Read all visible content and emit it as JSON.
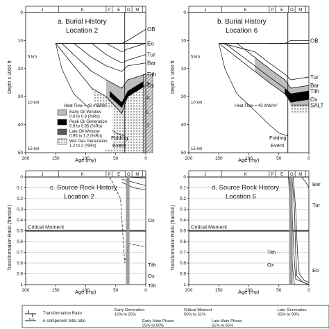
{
  "figure": {
    "colors": {
      "ink": "#111111",
      "grid": "#9a9a9a",
      "fold_band": "#8f8f8f",
      "early_oil": "#bdbdbd",
      "peak_oil": "#000000",
      "late_oil": "#5a5a5a",
      "wet_gas": "#e6e6e6"
    }
  },
  "chart_data": [
    {
      "id": "a",
      "type": "line",
      "title": "a. Burial History",
      "subtitle": "Location 2",
      "period_bar": [
        "J",
        "K",
        "P",
        "E",
        "O",
        "M"
      ],
      "x": {
        "label": "Age (my)",
        "ticks": [
          200,
          150,
          100,
          50,
          0
        ],
        "lim": [
          200,
          0
        ]
      },
      "y": {
        "label": "Depth x 1000 ft",
        "ticks": [
          0,
          10,
          20,
          30,
          40,
          50
        ],
        "lim": [
          0,
          50
        ]
      },
      "km_labels": [
        "5 km",
        "10 km",
        "15 km"
      ],
      "heat_flow": "Heat Flow = 43 mW/m²",
      "folding_label": [
        "Folding",
        "Event"
      ],
      "folding_age": 35,
      "horizons": [
        {
          "name": "OB",
          "points": [
            [
              66,
              11
            ],
            [
              40,
              11
            ],
            [
              30,
              10
            ],
            [
              0,
              6
            ]
          ]
        },
        {
          "name": "Eo",
          "points": [
            [
              66,
              11
            ],
            [
              40,
              14
            ],
            [
              30,
              13
            ],
            [
              0,
              11
            ]
          ]
        },
        {
          "name": "Tur",
          "points": [
            [
              145,
              11
            ],
            [
              90,
              11
            ],
            [
              66,
              15
            ],
            [
              40,
              18
            ],
            [
              30,
              17
            ],
            [
              0,
              15
            ]
          ]
        },
        {
          "name": "Bar",
          "points": [
            [
              120,
              11
            ],
            [
              90,
              16
            ],
            [
              66,
              19
            ],
            [
              40,
              21
            ],
            [
              30,
              19
            ],
            [
              0,
              18
            ]
          ]
        },
        {
          "name": "Tith",
          "points": [
            [
              140,
              11
            ],
            [
              90,
              21
            ],
            [
              66,
              24
            ],
            [
              40,
              27
            ],
            [
              30,
              24
            ],
            [
              0,
              22
            ]
          ]
        },
        {
          "name": "Ox",
          "points": [
            [
              150,
              11
            ],
            [
              90,
              27
            ],
            [
              66,
              30
            ],
            [
              40,
              36
            ],
            [
              30,
              30
            ],
            [
              0,
              26
            ]
          ]
        }
      ],
      "legend": [
        {
          "label": "Early Oil Window",
          "range": "0.6 to 0.9 (%Ro)",
          "key": "early"
        },
        {
          "label": "Peak Oil Generation",
          "range": "0.9 to 0.95 (%Ro)",
          "key": "peak"
        },
        {
          "label": "Late Oil Window",
          "range": "0.95 to 1.2 (%Ro)",
          "key": "late"
        },
        {
          "label": "Wet Gas Generation",
          "range": "1.2 to 2 (%Ro)",
          "key": "wet"
        }
      ],
      "column_labels": [
        "S",
        "A",
        "L",
        "T"
      ]
    },
    {
      "id": "b",
      "type": "line",
      "title": "b. Burial History",
      "subtitle": "Location 6",
      "period_bar": [
        "J",
        "K",
        "P",
        "E",
        "O",
        "M"
      ],
      "x": {
        "label": "Age (my)",
        "ticks": [
          200,
          150,
          100,
          50,
          0
        ],
        "lim": [
          200,
          0
        ]
      },
      "y": {
        "label": "Depth x 1000 ft",
        "ticks": [
          0,
          10,
          20,
          30,
          40,
          50
        ],
        "lim": [
          0,
          50
        ]
      },
      "km_labels": [
        "5 km",
        "10 km",
        "15 km"
      ],
      "heat_flow": "Heat Flow = 43 mW/m²",
      "folding_label": [
        "Folding",
        "Event"
      ],
      "folding_age": 35,
      "horizons": [
        {
          "name": "OB",
          "points": [
            [
              66,
              11
            ],
            [
              40,
              11
            ],
            [
              30,
              10
            ],
            [
              0,
              10
            ]
          ]
        },
        {
          "name": "Tur",
          "points": [
            [
              145,
              11
            ],
            [
              90,
              14
            ],
            [
              66,
              18
            ],
            [
              40,
              22
            ],
            [
              30,
              24
            ],
            [
              0,
              23
            ]
          ]
        },
        {
          "name": "Bar",
          "points": [
            [
              120,
              11
            ],
            [
              90,
              16
            ],
            [
              66,
              20
            ],
            [
              40,
              24
            ],
            [
              30,
              27
            ],
            [
              0,
              26
            ]
          ]
        },
        {
          "name": "Tith",
          "points": [
            [
              140,
              11
            ],
            [
              90,
              19
            ],
            [
              66,
              23
            ],
            [
              40,
              27
            ],
            [
              30,
              29
            ],
            [
              0,
              28
            ]
          ]
        },
        {
          "name": "Ox",
          "points": [
            [
              150,
              11
            ],
            [
              90,
              21
            ],
            [
              66,
              25
            ],
            [
              40,
              29
            ],
            [
              30,
              32
            ],
            [
              0,
              31
            ]
          ]
        },
        {
          "name": "SALT",
          "points": [
            [
              30,
              33
            ],
            [
              0,
              33
            ]
          ]
        }
      ]
    },
    {
      "id": "c",
      "type": "line",
      "title": "c. Source Rock History",
      "subtitle": "Location 2",
      "period_bar": [
        "J",
        "K",
        "P",
        "E",
        "O",
        "M"
      ],
      "x": {
        "label": "Age (my)",
        "ticks": [
          200,
          150,
          100,
          50,
          0
        ],
        "lim": [
          200,
          0
        ]
      },
      "y": {
        "label": "Transformation Ratio (fraction)",
        "ticks": [
          0,
          0.1,
          0.2,
          0.3,
          0.4,
          0.5,
          0.6,
          0.7,
          0.8,
          0.9,
          1
        ],
        "lim": [
          0,
          1
        ]
      },
      "critical_moment": {
        "label": "Critical Moment",
        "value": 0.5
      },
      "series": [
        {
          "name": "Ox",
          "points": [
            [
              60,
              0
            ],
            [
              42,
              0.2
            ],
            [
              38,
              0.55
            ],
            [
              35,
              0.8
            ],
            [
              28,
              0.62
            ],
            [
              0,
              0.65
            ]
          ]
        },
        {
          "name": "Tith",
          "points": [
            [
              40,
              0.05
            ],
            [
              20,
              0.1
            ],
            [
              0,
              0.12
            ]
          ]
        },
        {
          "name": "Ox",
          "points": [
            [
              40,
              0.02
            ],
            [
              20,
              0.05
            ],
            [
              0,
              0.08
            ]
          ]
        },
        {
          "name": "Tith",
          "points": [
            [
              30,
              0
            ],
            [
              0,
              0.01
            ]
          ]
        }
      ]
    },
    {
      "id": "d",
      "type": "line",
      "title": "d. Source Rock History",
      "subtitle": "Location 6",
      "period_bar": [
        "J",
        "K",
        "P",
        "E",
        "O",
        "M"
      ],
      "x": {
        "label": "Age (my)",
        "ticks": [
          200,
          150,
          100,
          50,
          0
        ],
        "lim": [
          200,
          0
        ]
      },
      "y": {
        "label": "Transformation Ratio (fraction)",
        "ticks": [
          0,
          0.1,
          0.2,
          0.3,
          0.4,
          0.5,
          0.6,
          0.7,
          0.8,
          0.9,
          1
        ],
        "lim": [
          0,
          1
        ]
      },
      "critical_moment": {
        "label": "Critical Moment",
        "value": 0.5
      },
      "series": [
        {
          "name": "Bar",
          "points": [
            [
              28,
              0
            ],
            [
              24,
              0.3
            ],
            [
              22,
              0.7
            ],
            [
              20,
              0.92
            ],
            [
              10,
              0.98
            ],
            [
              0,
              1
            ]
          ]
        },
        {
          "name": "Tur",
          "points": [
            [
              26,
              0
            ],
            [
              22,
              0.3
            ],
            [
              19,
              0.7
            ],
            [
              16,
              0.9
            ],
            [
              8,
              0.96
            ],
            [
              0,
              0.98
            ]
          ]
        },
        {
          "name": "Tith",
          "points": [
            [
              32,
              0
            ],
            [
              28,
              0.3
            ],
            [
              25,
              0.7
            ],
            [
              22,
              0.95
            ],
            [
              0,
              1
            ]
          ]
        },
        {
          "name": "Ox",
          "points": [
            [
              34,
              0
            ],
            [
              30,
              0.4
            ],
            [
              27,
              0.85
            ],
            [
              24,
              1
            ],
            [
              0,
              1
            ]
          ]
        },
        {
          "name": "Eo",
          "points": [
            [
              12,
              0
            ],
            [
              5,
              0.05
            ],
            [
              0,
              0.1
            ]
          ]
        }
      ]
    }
  ],
  "footer": {
    "key1": "Transformation Ratio",
    "key2": "n-component total ratio",
    "phases": [
      {
        "label": "Early Generation",
        "range": "10% to 25%"
      },
      {
        "label": "Early Main Phase",
        "range": "25% to 50%"
      },
      {
        "label": "Critical Moment",
        "range": "50% to 51%"
      },
      {
        "label": "Late Main Phase",
        "range": "51% to 65%"
      },
      {
        "label": "Late Generation",
        "range": "65% to 90%"
      }
    ]
  }
}
